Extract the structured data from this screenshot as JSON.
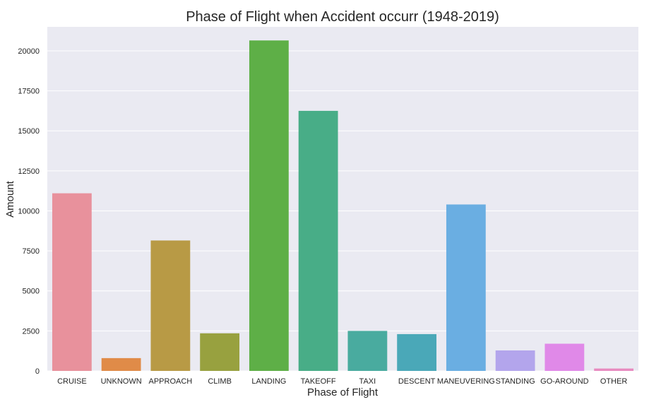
{
  "chart_data": {
    "type": "bar",
    "title": "Phase of Flight when Accident occurr (1948-2019)",
    "xlabel": "Phase of Flight",
    "ylabel": "Amount",
    "ylim": [
      0,
      21500
    ],
    "yticks": [
      0,
      2500,
      5000,
      7500,
      10000,
      12500,
      15000,
      17500,
      20000
    ],
    "grid": true,
    "background": "#eaeaf2",
    "categories": [
      "CRUISE",
      "UNKNOWN",
      "APPROACH",
      "CLIMB",
      "LANDING",
      "TAKEOFF",
      "TAXI",
      "DESCENT",
      "MANEUVERING",
      "STANDING",
      "GO-AROUND",
      "OTHER"
    ],
    "values": [
      11100,
      800,
      8150,
      2350,
      20650,
      16250,
      2500,
      2300,
      10400,
      1280,
      1700,
      150
    ],
    "colors": [
      "#e8919c",
      "#e08b48",
      "#b89a45",
      "#98a13f",
      "#5eaf47",
      "#48ad87",
      "#49ab9f",
      "#4aa8b8",
      "#6aaee2",
      "#b3a5ec",
      "#e089e8",
      "#e88bc0"
    ]
  }
}
